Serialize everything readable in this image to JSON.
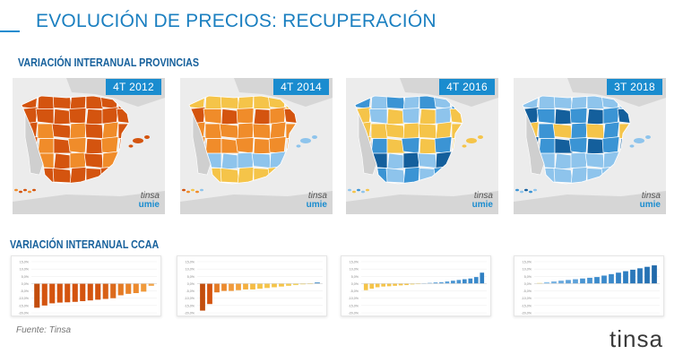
{
  "header": {
    "title": "EVOLUCIÓN DE PRECIOS: RECUPERACIÓN"
  },
  "section_provincias": {
    "label": "VARIACIÓN INTERANUAL PROVINCIAS"
  },
  "section_ccaa": {
    "label": "VARIACIÓN INTERANUAL CCAA"
  },
  "maps": [
    {
      "badge": "4T  2012",
      "logo_top": "tinsa",
      "logo_bottom": "umie"
    },
    {
      "badge": "4T  2014",
      "logo_top": "tinsa",
      "logo_bottom": "umie"
    },
    {
      "badge": "4T  2016",
      "logo_top": "tinsa",
      "logo_bottom": "umie"
    },
    {
      "badge": "3T  2018",
      "logo_top": "tinsa",
      "logo_bottom": "umie"
    }
  ],
  "colors": {
    "dark_orange": "#d4540f",
    "orange": "#f08c2a",
    "yellow": "#f5c449",
    "light_blue": "#8ec4ec",
    "mid_blue": "#3b94d4",
    "dark_blue": "#145f9c",
    "gray": "#b8b8b8",
    "accent": "#1a8ccf"
  },
  "chart_data": [
    {
      "type": "bar",
      "yticks": [
        "15,0%",
        "10,0%",
        "5,0%",
        "0,0%",
        "-5,0%",
        "-10,0%",
        "-15,0%",
        "-20,0%"
      ],
      "ylim": [
        -20,
        15
      ],
      "values": [
        -16.5,
        -15.0,
        -13.5,
        -13.0,
        -12.8,
        -12.5,
        -12.0,
        -11.5,
        -11.0,
        -10.5,
        -10.0,
        -8.0,
        -7.0,
        -6.5,
        -5.5,
        -1.5
      ],
      "bar_colors": [
        "#c24d0c",
        "#d4540f",
        "#d4540f",
        "#d4540f",
        "#d4540f",
        "#d4540f",
        "#d4540f",
        "#d4540f",
        "#d4540f",
        "#d86015",
        "#dc6a1c",
        "#e47a24",
        "#e98329",
        "#ec8a2e",
        "#f09a3c",
        "#f3a64a"
      ]
    },
    {
      "type": "bar",
      "yticks": [
        "15,0%",
        "10,0%",
        "5,0%",
        "0,0%",
        "-5,0%",
        "-10,0%",
        "-15,0%",
        "-20,0%"
      ],
      "ylim": [
        -20,
        15
      ],
      "values": [
        -18.5,
        -14.0,
        -6.0,
        -5.0,
        -5.0,
        -4.5,
        -4.0,
        -4.0,
        -3.5,
        -3.0,
        -2.5,
        -2.0,
        -1.5,
        -1.0,
        -0.5,
        -0.3,
        0.8
      ],
      "bar_colors": [
        "#c24d0c",
        "#d4540f",
        "#e47a24",
        "#ec8a2e",
        "#f09a3c",
        "#f2a13c",
        "#f4b040",
        "#f5bc44",
        "#f5c449",
        "#f5c449",
        "#f5c449",
        "#f5c449",
        "#f5cc52",
        "#f5d45c",
        "#f5d45c",
        "#f5d45c",
        "#4a90c8"
      ]
    },
    {
      "type": "bar",
      "yticks": [
        "15,0%",
        "10,0%",
        "5,0%",
        "0,0%",
        "-5,0%",
        "-10,0%",
        "-15,0%",
        "-20,0%"
      ],
      "ylim": [
        -20,
        15
      ],
      "values": [
        -4.5,
        -3.5,
        -2.5,
        -2.0,
        -1.8,
        -1.5,
        -1.2,
        -1.0,
        -0.6,
        -0.3,
        0.3,
        0.5,
        0.8,
        1.0,
        1.5,
        2.0,
        2.5,
        3.0,
        3.5,
        4.5,
        7.5
      ],
      "bar_colors": [
        "#f5c449",
        "#f5c449",
        "#f5c449",
        "#f5c449",
        "#f5c449",
        "#f5c449",
        "#f5c449",
        "#f5c449",
        "#f5d45c",
        "#f5d45c",
        "#7ab4e2",
        "#6aaade",
        "#5ea2da",
        "#5ea2da",
        "#5ea2da",
        "#4a95d2",
        "#4a95d2",
        "#3b8acb",
        "#3b8acb",
        "#3b8acb",
        "#2f7fc2"
      ]
    },
    {
      "type": "bar",
      "yticks": [
        "15,0%",
        "10,0%",
        "5,0%",
        "0,0%",
        "-5,0%",
        "-10,0%",
        "-15,0%",
        "-20,0%"
      ],
      "ylim": [
        -20,
        15
      ],
      "values": [
        0.4,
        1.0,
        1.5,
        2.0,
        2.5,
        3.0,
        3.5,
        4.0,
        4.5,
        5.5,
        6.5,
        7.5,
        8.5,
        9.5,
        10.5,
        11.5,
        12.5
      ],
      "bar_colors": [
        "#f5d45c",
        "#8ec4ec",
        "#7ab4e2",
        "#6aaade",
        "#5ea2da",
        "#5ea2da",
        "#4a95d2",
        "#4a95d2",
        "#3b8acb",
        "#3b8acb",
        "#3b8acb",
        "#3382c5",
        "#2f7fc2",
        "#2b78ba",
        "#2b78ba",
        "#2672b4",
        "#226aab"
      ]
    }
  ],
  "footer": {
    "source": "Fuente: Tinsa",
    "brand": "tinsa"
  }
}
